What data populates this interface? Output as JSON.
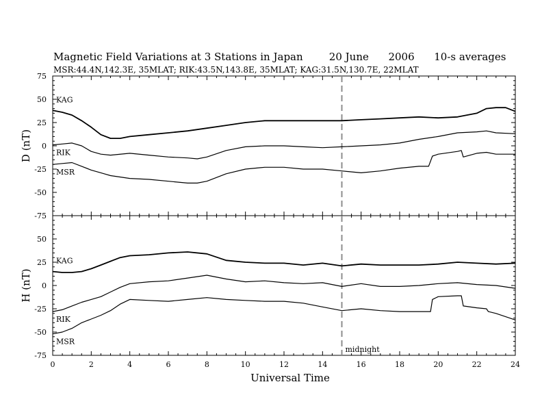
{
  "title": "Magnetic Field Variations at 3 Stations in Japan        20 June      2006      10-s averages",
  "subtitle": "MSR:44.4N,142.3E, 35MLAT;  RIK:43.5N,143.8E, 35MLAT;  KAG:31.5N,130.7E, 22MLAT",
  "xlabel": "Universal Time",
  "midnight_label": "midnight",
  "chart_data": [
    {
      "type": "line",
      "ylabel": "D (nT)",
      "xlim": [
        0,
        24
      ],
      "ylim": [
        -75,
        75
      ],
      "xticks": [
        0,
        2,
        4,
        6,
        8,
        10,
        12,
        14,
        16,
        18,
        20,
        22,
        24
      ],
      "yticks": [
        -75,
        -50,
        -25,
        0,
        25,
        50,
        75
      ],
      "grid": false,
      "marker_line_x": 15,
      "series": [
        {
          "name": "KAG",
          "x": [
            0,
            0.5,
            1,
            1.5,
            2,
            2.5,
            3,
            3.5,
            4,
            5,
            6,
            7,
            8,
            9,
            10,
            11,
            12,
            13,
            14,
            15,
            16,
            17,
            18,
            19,
            20,
            21,
            22,
            22.5,
            23,
            23.5,
            24
          ],
          "y": [
            38,
            36,
            33,
            27,
            20,
            12,
            8,
            8,
            10,
            12,
            14,
            16,
            19,
            22,
            25,
            27,
            27,
            27,
            27,
            27,
            28,
            29,
            30,
            31,
            30,
            31,
            35,
            40,
            41,
            41,
            37
          ]
        },
        {
          "name": "RIK",
          "x": [
            0,
            0.5,
            1,
            1.5,
            2,
            2.5,
            3,
            4,
            5,
            6,
            7,
            7.5,
            8,
            9,
            10,
            11,
            12,
            13,
            14,
            15,
            16,
            17,
            18,
            19,
            20,
            21,
            22,
            22.5,
            23,
            24
          ],
          "y": [
            1,
            2,
            3,
            0,
            -6,
            -9,
            -10,
            -8,
            -10,
            -12,
            -13,
            -14,
            -12,
            -5,
            -1,
            0,
            0,
            -1,
            -2,
            -1,
            0,
            1,
            3,
            7,
            10,
            14,
            15,
            16,
            14,
            13
          ]
        },
        {
          "name": "MSR",
          "x": [
            0,
            0.5,
            1,
            1.5,
            2,
            2.5,
            3,
            4,
            5,
            6,
            7,
            7.5,
            8,
            9,
            10,
            11,
            12,
            13,
            14,
            15,
            16,
            17,
            18,
            19,
            19.5,
            19.7,
            20,
            21,
            21.2,
            21.3,
            22,
            22.5,
            23,
            24
          ],
          "y": [
            -20,
            -19,
            -18,
            -22,
            -26,
            -29,
            -32,
            -35,
            -36,
            -38,
            -40,
            -40,
            -38,
            -30,
            -25,
            -23,
            -23,
            -25,
            -25,
            -27,
            -29,
            -27,
            -24,
            -22,
            -22,
            -11,
            -9,
            -6,
            -5,
            -12,
            -8,
            -7,
            -9,
            -9
          ]
        }
      ]
    },
    {
      "type": "line",
      "ylabel": "H (nT)",
      "xlim": [
        0,
        24
      ],
      "ylim": [
        -75,
        75
      ],
      "xticks": [
        0,
        2,
        4,
        6,
        8,
        10,
        12,
        14,
        16,
        18,
        20,
        22,
        24
      ],
      "yticks": [
        -75,
        -50,
        -25,
        0,
        25,
        50,
        75
      ],
      "grid": false,
      "marker_line_x": 15,
      "series": [
        {
          "name": "KAG",
          "x": [
            0,
            0.5,
            1,
            1.5,
            2,
            2.5,
            3,
            3.5,
            4,
            5,
            6,
            7,
            8,
            9,
            10,
            11,
            12,
            13,
            14,
            15,
            16,
            17,
            18,
            19,
            20,
            21,
            22,
            23,
            24
          ],
          "y": [
            15,
            14,
            14,
            15,
            18,
            22,
            26,
            30,
            32,
            33,
            35,
            36,
            34,
            27,
            25,
            24,
            24,
            22,
            24,
            21,
            23,
            22,
            22,
            22,
            23,
            25,
            24,
            23,
            24
          ]
        },
        {
          "name": "RIK",
          "x": [
            0,
            0.5,
            1,
            1.5,
            2,
            2.5,
            3,
            3.5,
            4,
            5,
            6,
            7,
            8,
            9,
            10,
            11,
            12,
            13,
            14,
            15,
            16,
            17,
            18,
            19,
            20,
            21,
            22,
            23,
            24
          ],
          "y": [
            -28,
            -26,
            -22,
            -18,
            -15,
            -12,
            -7,
            -2,
            2,
            4,
            5,
            8,
            11,
            7,
            4,
            5,
            3,
            2,
            3,
            -1,
            2,
            -1,
            -1,
            0,
            2,
            3,
            1,
            0,
            -3
          ]
        },
        {
          "name": "MSR",
          "x": [
            0,
            0.5,
            1,
            1.5,
            2,
            2.5,
            3,
            3.5,
            4,
            5,
            6,
            7,
            8,
            9,
            10,
            11,
            12,
            13,
            14,
            15,
            16,
            17,
            18,
            19,
            19.6,
            19.7,
            20,
            21,
            21.2,
            21.3,
            22,
            22.5,
            22.6,
            23,
            24
          ],
          "y": [
            -52,
            -50,
            -46,
            -40,
            -36,
            -32,
            -27,
            -20,
            -15,
            -16,
            -17,
            -15,
            -13,
            -15,
            -16,
            -17,
            -17,
            -19,
            -23,
            -27,
            -25,
            -27,
            -28,
            -28,
            -28,
            -15,
            -12,
            -11,
            -11,
            -22,
            -24,
            -25,
            -28,
            -30,
            -37
          ]
        }
      ]
    }
  ]
}
